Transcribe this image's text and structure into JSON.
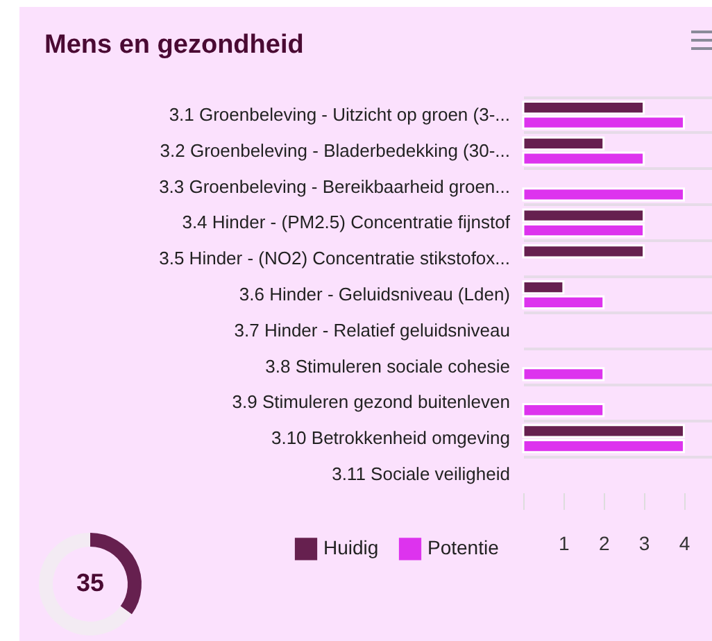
{
  "chart_data": [
    {
      "type": "bar",
      "title": "Mens en gezondheid",
      "orientation": "horizontal",
      "categories": [
        "3.1 Groenbeleving - Uitzicht op groen (3-...",
        "3.2 Groenbeleving - Bladerbedekking (30-...",
        "3.3 Groenbeleving - Bereikbaarheid groen...",
        "3.4 Hinder - (PM2.5) Concentratie fijnstof",
        "3.5 Hinder - (NO2) Concentratie stikstofox...",
        "3.6 Hinder - Geluidsniveau (Lden)",
        "3.7 Hinder - Relatief geluidsniveau",
        "3.8 Stimuleren sociale cohesie",
        "3.9 Stimuleren gezond buitenleven",
        "3.10 Betrokkenheid omgeving",
        "3.11 Sociale veiligheid"
      ],
      "series": [
        {
          "name": "Huidig",
          "color": "#66204f",
          "values": [
            3,
            2,
            0,
            3,
            3,
            1,
            0,
            0,
            0,
            4,
            0
          ]
        },
        {
          "name": "Potentie",
          "color": "#dd33ee",
          "values": [
            4,
            3,
            4,
            3,
            0,
            2,
            0,
            2,
            2,
            4,
            0
          ]
        }
      ],
      "xlim": [
        0,
        4.7
      ],
      "xticks": [
        {
          "value": 0,
          "label": null
        },
        1,
        2,
        3,
        4
      ],
      "grid": "y",
      "legend": "bottom"
    },
    {
      "type": "donut",
      "categories": [
        null,
        null
      ],
      "values": [
        35,
        65
      ],
      "colors": [
        "#66204f",
        "#f3ebf3"
      ],
      "annotations": [
        "35"
      ]
    }
  ]
}
